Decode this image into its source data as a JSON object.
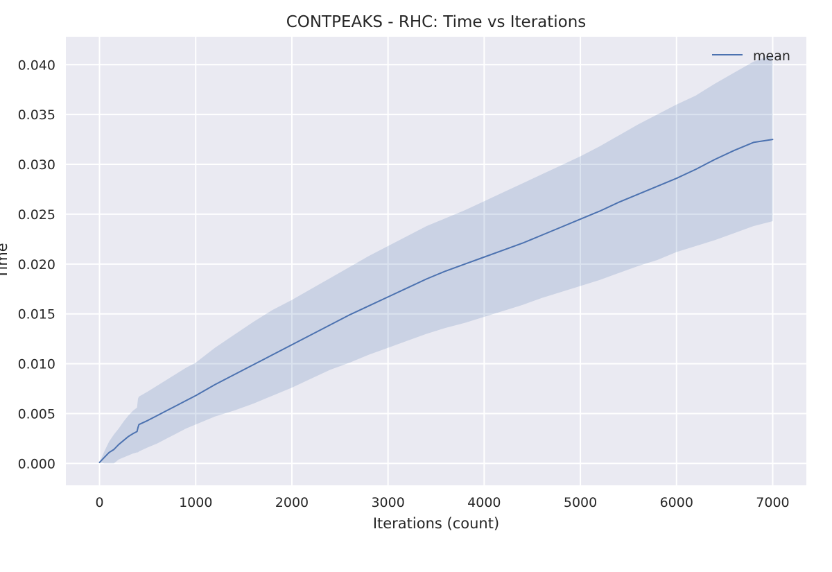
{
  "chart_data": {
    "type": "line",
    "title": "CONTPEAKS - RHC: Time vs Iterations",
    "xlabel": "Iterations (count)",
    "ylabel": "Time",
    "xlim": [
      -350,
      7350
    ],
    "ylim": [
      -0.0022,
      0.0428
    ],
    "xticks": [
      {
        "value": 0,
        "label": "0"
      },
      {
        "value": 1000,
        "label": "1000"
      },
      {
        "value": 2000,
        "label": "2000"
      },
      {
        "value": 3000,
        "label": "3000"
      },
      {
        "value": 4000,
        "label": "4000"
      },
      {
        "value": 5000,
        "label": "5000"
      },
      {
        "value": 6000,
        "label": "6000"
      },
      {
        "value": 7000,
        "label": "7000"
      }
    ],
    "yticks": [
      {
        "value": 0.0,
        "label": "0.000"
      },
      {
        "value": 0.005,
        "label": "0.005"
      },
      {
        "value": 0.01,
        "label": "0.010"
      },
      {
        "value": 0.015,
        "label": "0.015"
      },
      {
        "value": 0.02,
        "label": "0.020"
      },
      {
        "value": 0.025,
        "label": "0.025"
      },
      {
        "value": 0.03,
        "label": "0.030"
      },
      {
        "value": 0.035,
        "label": "0.035"
      },
      {
        "value": 0.04,
        "label": "0.040"
      }
    ],
    "grid": true,
    "legend": {
      "position": "top-right",
      "entries": [
        "mean"
      ]
    },
    "series": [
      {
        "name": "mean",
        "color": "#4c72b0",
        "x": [
          0,
          50,
          100,
          150,
          200,
          250,
          300,
          350,
          390,
          400,
          410,
          500,
          600,
          700,
          800,
          900,
          1000,
          1200,
          1400,
          1600,
          1800,
          2000,
          2200,
          2400,
          2600,
          2800,
          3000,
          3200,
          3400,
          3600,
          3800,
          4000,
          4200,
          4400,
          4600,
          4800,
          5000,
          5200,
          5400,
          5600,
          5800,
          6000,
          6200,
          6400,
          6600,
          6800,
          7000
        ],
        "y": [
          0.0001,
          0.0006,
          0.0011,
          0.0014,
          0.0019,
          0.0023,
          0.0027,
          0.003,
          0.0032,
          0.0036,
          0.0039,
          0.0043,
          0.0048,
          0.0053,
          0.0058,
          0.0063,
          0.0068,
          0.0079,
          0.0089,
          0.0099,
          0.0109,
          0.0119,
          0.0129,
          0.0139,
          0.0149,
          0.0158,
          0.0167,
          0.0176,
          0.0185,
          0.0193,
          0.02,
          0.0207,
          0.0214,
          0.0221,
          0.0229,
          0.0237,
          0.0245,
          0.0253,
          0.0262,
          0.027,
          0.0278,
          0.0286,
          0.0295,
          0.0305,
          0.0314,
          0.0322,
          0.0325
        ]
      }
    ],
    "band": {
      "color": "#4c72b0",
      "opacity": 0.2,
      "x": [
        0,
        50,
        100,
        150,
        200,
        250,
        300,
        350,
        390,
        400,
        410,
        500,
        600,
        700,
        800,
        900,
        1000,
        1200,
        1400,
        1600,
        1800,
        2000,
        2200,
        2400,
        2600,
        2800,
        3000,
        3200,
        3400,
        3600,
        3800,
        4000,
        4200,
        4400,
        4600,
        4800,
        5000,
        5200,
        5400,
        5600,
        5800,
        6000,
        6200,
        6400,
        6600,
        6800,
        7000
      ],
      "upper": [
        0.0001,
        0.0012,
        0.0022,
        0.0029,
        0.0035,
        0.0042,
        0.0048,
        0.0053,
        0.0056,
        0.0065,
        0.0067,
        0.0072,
        0.0078,
        0.0084,
        0.009,
        0.0096,
        0.0101,
        0.0116,
        0.0129,
        0.0142,
        0.0154,
        0.0164,
        0.0175,
        0.0186,
        0.0197,
        0.0208,
        0.0218,
        0.0228,
        0.0238,
        0.0246,
        0.0254,
        0.0263,
        0.0272,
        0.0281,
        0.029,
        0.0299,
        0.0308,
        0.0318,
        0.0329,
        0.034,
        0.035,
        0.036,
        0.0369,
        0.0381,
        0.0392,
        0.0403,
        0.041
      ],
      "lower": [
        0.0001,
        0.0,
        0.0,
        0.0,
        0.0004,
        0.0006,
        0.0008,
        0.001,
        0.0011,
        0.0011,
        0.0012,
        0.0016,
        0.002,
        0.0025,
        0.003,
        0.0035,
        0.0039,
        0.0047,
        0.0053,
        0.006,
        0.0068,
        0.0076,
        0.0085,
        0.0094,
        0.0101,
        0.0109,
        0.0116,
        0.0123,
        0.013,
        0.0136,
        0.0141,
        0.0147,
        0.0153,
        0.0159,
        0.0166,
        0.0172,
        0.0178,
        0.0184,
        0.0191,
        0.0198,
        0.0204,
        0.0212,
        0.0218,
        0.0224,
        0.0231,
        0.0238,
        0.0243
      ]
    }
  }
}
